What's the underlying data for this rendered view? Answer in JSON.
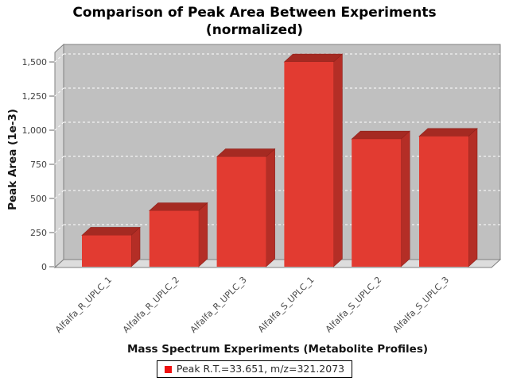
{
  "title": {
    "line1": "Comparison of Peak Area Between Experiments",
    "line2": "(normalized)"
  },
  "axes": {
    "y_title": "Peak Area (1e-3)",
    "x_title": "Mass Spectrum Experiments (Metabolite Profiles)"
  },
  "legend": {
    "label": "Peak R.T.=33.651, m/z=321.2073",
    "swatch_color": "#ee1111"
  },
  "chart_data": {
    "type": "bar",
    "style": "3d-bar",
    "title": "Comparison of Peak Area Between Experiments (normalized)",
    "xlabel": "Mass Spectrum Experiments (Metabolite Profiles)",
    "ylabel": "Peak Area (1e-3)",
    "categories": [
      "Alfalfa_R_UPLC_1",
      "Alfalfa_R_UPLC_2",
      "Alfalfa_R_UPLC_3",
      "Alfalfa_S_UPLC_1",
      "Alfalfa_S_UPLC_2",
      "Alfalfa_S_UPLC_3"
    ],
    "series": [
      {
        "name": "Peak R.T.=33.651, m/z=321.2073",
        "values": [
          230,
          410,
          805,
          1500,
          935,
          955
        ]
      }
    ],
    "ylim": [
      0,
      1570
    ],
    "yticks": [
      0,
      250,
      500,
      750,
      1000,
      1250,
      1500
    ],
    "ytick_labels": [
      "0",
      "250",
      "500",
      "750",
      "1,000",
      "1,250",
      "1,500"
    ],
    "grid": {
      "horizontal": true,
      "dashed": true,
      "color": "#ffffff"
    },
    "legend_position": "bottom",
    "colors": {
      "bar_front": "#e23b31",
      "bar_top": "#a52a22",
      "bar_side": "#b42e26",
      "bar_edge": "#8f211b",
      "wall_back": "#c0c0c0",
      "wall_left": "#d6d6d6",
      "floor": "#dddddd",
      "outline": "#808080",
      "gridline": "#ffffff",
      "tick_mark": "#666666",
      "tick_label": "#3f3f3f",
      "category_label": "#4a4a4a"
    }
  }
}
